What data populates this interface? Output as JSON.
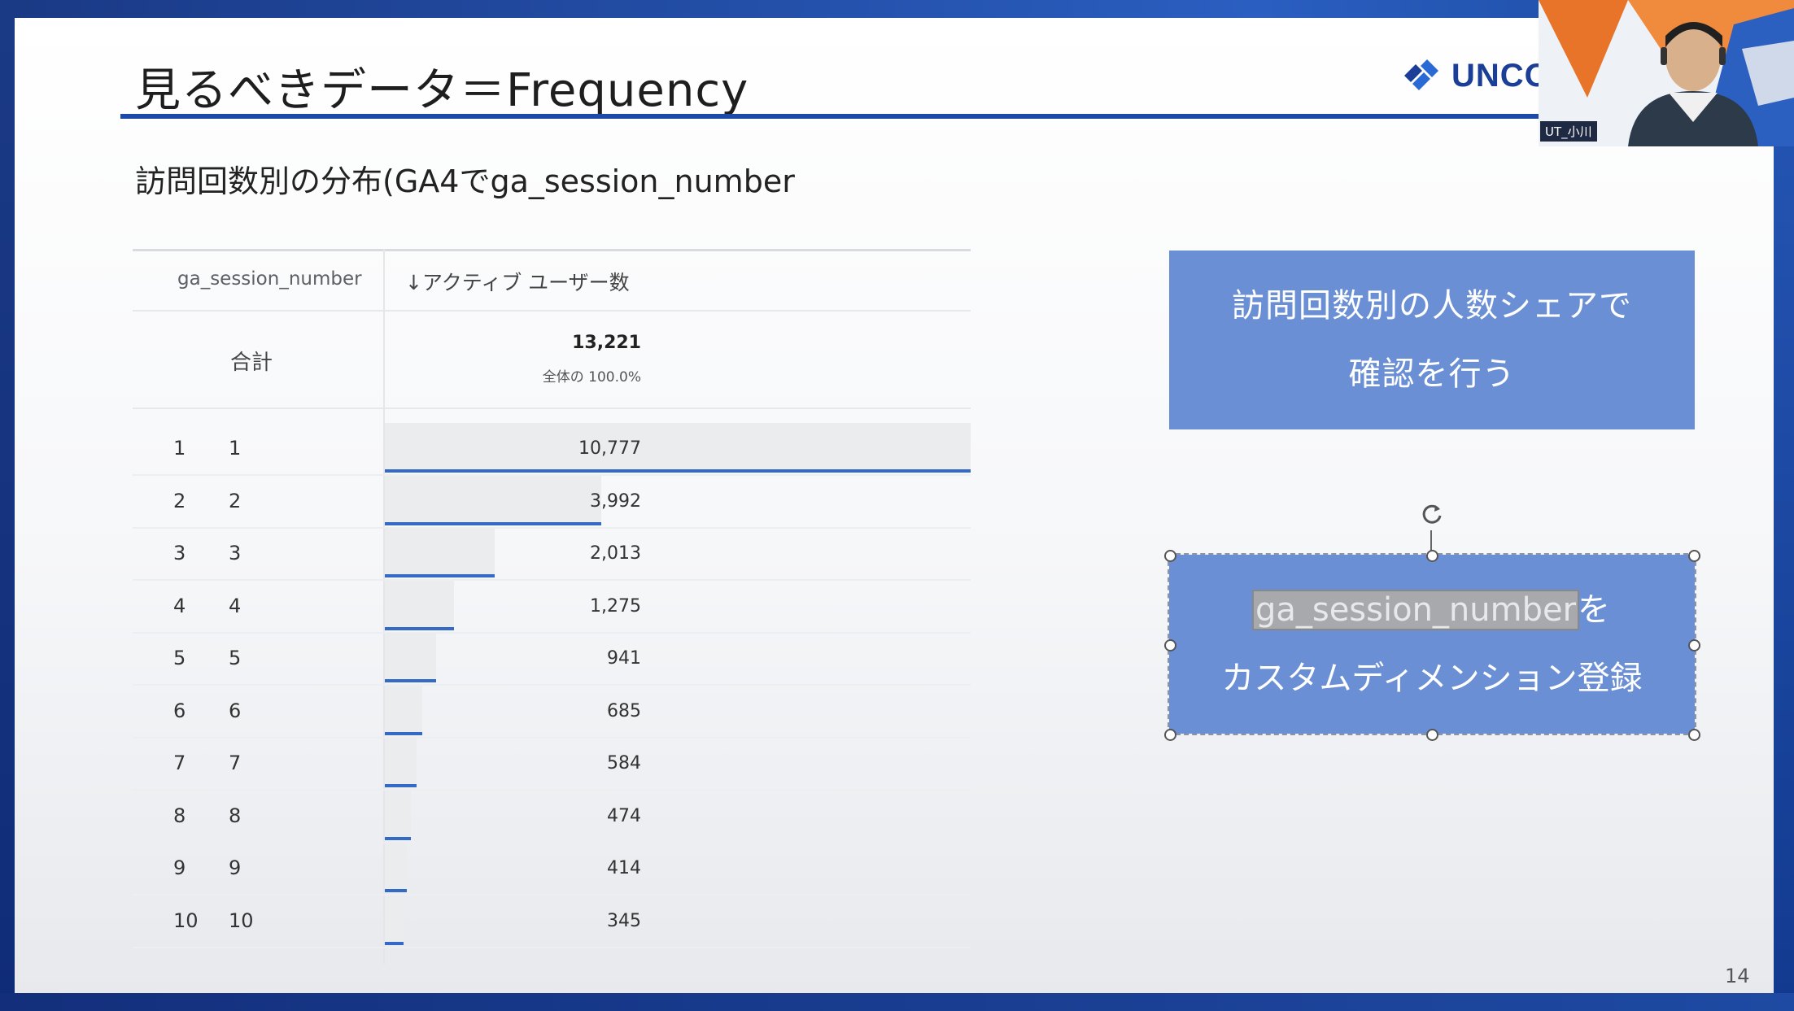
{
  "slide": {
    "title": "見るべきデータ＝Frequency",
    "subtitle": "訪問回数別の分布(GA4でga_session_number",
    "logo_text": "UNCO",
    "page_number": "14",
    "brand_color": "#1d4aa8"
  },
  "table": {
    "dimension_header": "ga_session_number",
    "metric_header": "↓アクティブ ユーザー数",
    "total_label": "合計",
    "total_value": "13,221",
    "total_share": "全体の 100.0%",
    "rows": [
      {
        "index": "1",
        "key": "1",
        "value": "10,777",
        "share": 1.0
      },
      {
        "index": "2",
        "key": "2",
        "value": "3,992",
        "share": 0.37
      },
      {
        "index": "3",
        "key": "3",
        "value": "2,013",
        "share": 0.187
      },
      {
        "index": "4",
        "key": "4",
        "value": "1,275",
        "share": 0.118
      },
      {
        "index": "5",
        "key": "5",
        "value": "941",
        "share": 0.087
      },
      {
        "index": "6",
        "key": "6",
        "value": "685",
        "share": 0.064
      },
      {
        "index": "7",
        "key": "7",
        "value": "584",
        "share": 0.054
      },
      {
        "index": "8",
        "key": "8",
        "value": "474",
        "share": 0.044
      },
      {
        "index": "9",
        "key": "9",
        "value": "414",
        "share": 0.038
      },
      {
        "index": "10",
        "key": "10",
        "value": "345",
        "share": 0.032
      }
    ]
  },
  "callouts": {
    "first_line1": "訪問回数別の人数シェアで",
    "first_line2": "確認を行う",
    "second_selected": "ga_session_number",
    "second_suffix": "を",
    "second_line2": "カスタムディメンション登録"
  },
  "webcam": {
    "label": "UT_小川"
  }
}
